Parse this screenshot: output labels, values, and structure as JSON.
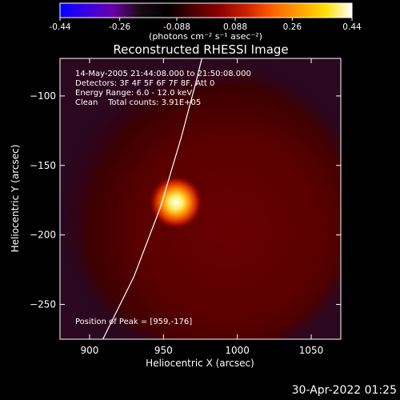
{
  "chart_data": {
    "type": "heatmap",
    "title": "Reconstructed RHESSI Image",
    "xlabel": "Heliocentric X (arcsec)",
    "ylabel": "Heliocentric Y (arcsec)",
    "xlim": [
      880,
      1070
    ],
    "ylim": [
      -275,
      -73
    ],
    "x_ticks": [
      900,
      950,
      1000,
      1050
    ],
    "y_ticks": [
      -100,
      -150,
      -200,
      -250
    ],
    "colorbar": {
      "min": -0.44,
      "max": 0.44,
      "ticks": [
        "-0.44",
        "-0.26",
        "-0.088",
        "0.088",
        "0.26",
        "0.44"
      ],
      "unit_label": "(photons cm⁻² s⁻¹ asec⁻²)",
      "colormap": [
        "#0000ff",
        "#3a00e6",
        "#6a00a8",
        "#1a0a14",
        "#000000",
        "#4a0000",
        "#8b0000",
        "#cc2000",
        "#ff6000",
        "#ffa000",
        "#ffe000",
        "#ffffff"
      ]
    },
    "info_lines": [
      "14-May-2005 21:44:08.000 to 21:50:08.000",
      "Detectors: 3F 4F 5F 6F 7F 8F, Att 0",
      "Energy Range: 6.0 - 12.0 keV",
      "Clean    Total counts: 3.91E+05"
    ],
    "peak_text": "Position of Peak = [959,-176]",
    "peak": {
      "x": 959,
      "y": -176,
      "value": 0.44
    },
    "solar_limb": [
      [
        909,
        -275
      ],
      [
        930,
        -230
      ],
      [
        948,
        -180
      ],
      [
        962,
        -130
      ],
      [
        972,
        -90
      ],
      [
        976,
        -73
      ]
    ],
    "background_disk": {
      "center_x": 985,
      "center_y": -185,
      "radius_arcsec": 95,
      "value": 0.06
    },
    "grid": false
  },
  "timestamp": "30-Apr-2022 01:25"
}
